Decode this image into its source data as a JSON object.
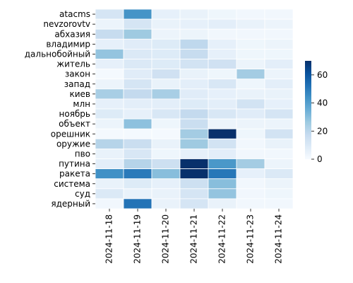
{
  "chart_data": {
    "type": "heatmap",
    "rows": [
      "atacms",
      "nevzorovtv",
      "абхазия",
      "владимир",
      "дальнобойный",
      "житель",
      "закон",
      "запад",
      "киев",
      "млн",
      "ноябрь",
      "объект",
      "орешник",
      "оружие",
      "пво",
      "путина",
      "ракета",
      "система",
      "суд",
      "ядерный"
    ],
    "columns": [
      "2024-11-18",
      "2024-11-19",
      "2024-11-20",
      "2024-11-21",
      "2024-11-22",
      "2024-11-23",
      "2024-11-24"
    ],
    "values": [
      [
        12,
        43,
        6,
        5,
        3,
        2,
        2
      ],
      [
        4,
        12,
        5,
        6,
        7,
        5,
        4
      ],
      [
        17,
        26,
        4,
        4,
        2,
        2,
        2
      ],
      [
        6,
        8,
        9,
        19,
        6,
        3,
        4
      ],
      [
        28,
        10,
        9,
        17,
        6,
        3,
        3
      ],
      [
        6,
        10,
        9,
        13,
        14,
        4,
        7
      ],
      [
        1,
        8,
        14,
        5,
        3,
        25,
        4
      ],
      [
        4,
        12,
        5,
        7,
        11,
        3,
        7
      ],
      [
        24,
        18,
        24,
        8,
        6,
        5,
        5
      ],
      [
        6,
        7,
        7,
        9,
        7,
        13,
        6
      ],
      [
        9,
        6,
        11,
        18,
        11,
        8,
        12
      ],
      [
        4,
        29,
        3,
        16,
        4,
        4,
        4
      ],
      [
        1,
        1,
        1,
        25,
        70,
        3,
        13
      ],
      [
        21,
        16,
        5,
        26,
        13,
        2,
        5
      ],
      [
        5,
        11,
        3,
        6,
        7,
        2,
        2
      ],
      [
        7,
        21,
        15,
        70,
        42,
        25,
        4
      ],
      [
        44,
        50,
        30,
        70,
        51,
        6,
        10
      ],
      [
        5,
        9,
        6,
        15,
        30,
        2,
        4
      ],
      [
        10,
        5,
        5,
        12,
        28,
        2,
        3
      ],
      [
        2,
        52,
        5,
        12,
        5,
        2,
        2
      ]
    ],
    "colorbar": {
      "min": 0,
      "max": 70,
      "ticks": [
        0,
        20,
        40,
        60
      ]
    },
    "colormap": [
      "#f7fbff",
      "#deebf7",
      "#c6dbef",
      "#9ecae1",
      "#6baed6",
      "#4292c6",
      "#2171b5",
      "#08519c",
      "#08306b"
    ]
  }
}
